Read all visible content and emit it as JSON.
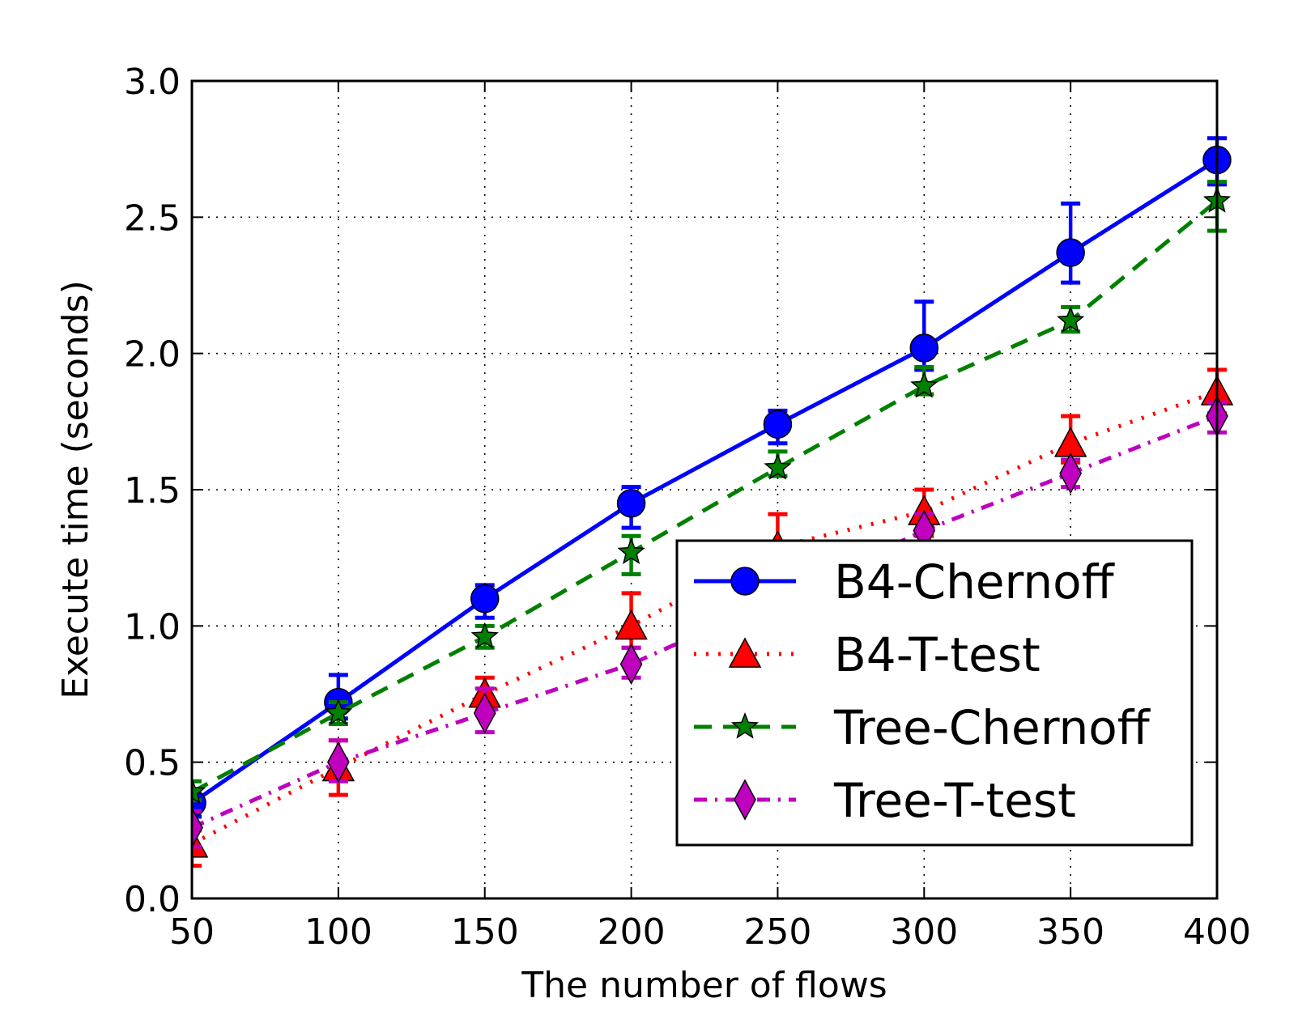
{
  "chart_data": {
    "type": "line",
    "xlabel": "The number of flows",
    "ylabel": "Execute time (seconds)",
    "xlim": [
      50,
      400
    ],
    "ylim": [
      0.0,
      3.0
    ],
    "xticks": [
      "50",
      "100",
      "150",
      "200",
      "250",
      "300",
      "350",
      "400"
    ],
    "yticks": [
      "0.0",
      "0.5",
      "1.0",
      "1.5",
      "2.0",
      "2.5",
      "3.0"
    ],
    "grid": true,
    "legend_position": "lower-right",
    "x": [
      50,
      100,
      150,
      200,
      250,
      300,
      350,
      400
    ],
    "series": [
      {
        "name": "B4-Chernoff",
        "color": "#0000ff",
        "line_style": "solid",
        "marker": "circle",
        "values": [
          0.35,
          0.72,
          1.1,
          1.45,
          1.74,
          2.02,
          2.37,
          2.71
        ],
        "err_low": [
          0.05,
          0.06,
          0.07,
          0.09,
          0.07,
          0.08,
          0.11,
          0.09
        ],
        "err_high": [
          0.05,
          0.1,
          0.05,
          0.06,
          0.05,
          0.17,
          0.18,
          0.08
        ]
      },
      {
        "name": "B4-T-test",
        "color": "#ff0000",
        "line_style": "dotted",
        "marker": "triangle",
        "values": [
          0.2,
          0.48,
          0.75,
          1.0,
          1.29,
          1.42,
          1.67,
          1.86
        ],
        "err_low": [
          0.08,
          0.1,
          0.06,
          0.08,
          0.08,
          0.09,
          0.07,
          0.08
        ],
        "err_high": [
          0.05,
          0.1,
          0.06,
          0.12,
          0.12,
          0.08,
          0.1,
          0.08
        ]
      },
      {
        "name": "Tree-Chernoff",
        "color": "#008000",
        "line_style": "dashed",
        "marker": "star",
        "values": [
          0.39,
          0.68,
          0.96,
          1.27,
          1.58,
          1.88,
          2.12,
          2.56
        ],
        "err_low": [
          0.03,
          0.04,
          0.04,
          0.08,
          0.03,
          0.03,
          0.04,
          0.11
        ],
        "err_high": [
          0.04,
          0.04,
          0.04,
          0.06,
          0.06,
          0.07,
          0.05,
          0.07
        ]
      },
      {
        "name": "Tree-T-test",
        "color": "#bf00bf",
        "line_style": "dashdot",
        "marker": "diamond",
        "values": [
          0.26,
          0.5,
          0.68,
          0.86,
          1.1,
          1.35,
          1.56,
          1.77
        ],
        "err_low": [
          0.07,
          0.07,
          0.07,
          0.05,
          0.06,
          0.07,
          0.05,
          0.06
        ],
        "err_high": [
          0.06,
          0.08,
          0.09,
          0.06,
          0.05,
          0.06,
          0.05,
          0.05
        ]
      }
    ]
  }
}
